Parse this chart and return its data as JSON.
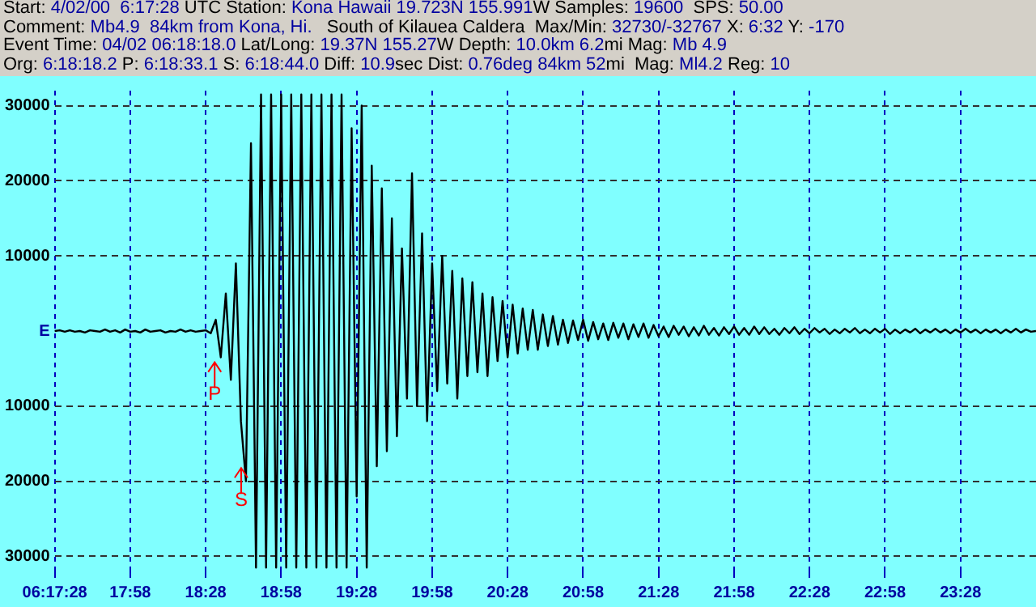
{
  "chart_data": {
    "type": "line",
    "annotations": [
      "Start: 4/02/00  6:17:28 UTC Station: Kona Hawaii 19.723N 155.991W Samples: 19600  SPS: 50.00",
      "Comment: Mb4.9  84km from Kona, Hi.   South of Kilauea Caldera  Max/Min: 32730/-32767 X: 6:32 Y: -170",
      "Event Time: 04/02 06:18:18.0 Lat/Long: 19.37N 155.27W Depth: 10.0km 6.2mi Mag: Mb 4.9",
      "Org: 6:18:18.2 P: 6:18:33.1 S: 6:18:44.0 Diff: 10.9sec Dist: 0.76deg 84km 52mi  Mag: Ml4.2 Reg: 10",
      "P",
      "S"
    ],
    "categories": [
      "06:17:28",
      null,
      null,
      null,
      null,
      null,
      null,
      null,
      null,
      null,
      null,
      null,
      null,
      null,
      null,
      "17:58",
      null,
      null,
      null,
      null,
      null,
      null,
      null,
      null,
      null,
      null,
      null,
      null,
      null,
      null,
      "18:28",
      null,
      null,
      null,
      null,
      null,
      null,
      null,
      null,
      null,
      null,
      null,
      null,
      null,
      null,
      "18:58",
      null,
      null,
      null,
      null,
      null,
      null,
      null,
      null,
      null,
      null,
      null,
      null,
      null,
      null,
      "19:28",
      null,
      null,
      null,
      null,
      null,
      null,
      null,
      null,
      null,
      null,
      null,
      null,
      null,
      null,
      "19:58",
      null,
      null,
      null,
      null,
      null,
      null,
      null,
      null,
      null,
      null,
      null,
      null,
      null,
      null,
      "20:28",
      null,
      null,
      null,
      null,
      null,
      null,
      null,
      null,
      null,
      null,
      null,
      null,
      null,
      null,
      "20:58",
      null,
      null,
      null,
      null,
      null,
      null,
      null,
      null,
      null,
      null,
      null,
      null,
      null,
      null,
      "21:28",
      null,
      null,
      null,
      null,
      null,
      null,
      null,
      null,
      null,
      null,
      null,
      null,
      null,
      null,
      "21:58",
      null,
      null,
      null,
      null,
      null,
      null,
      null,
      null,
      null,
      null,
      null,
      null,
      null,
      null,
      "22:28",
      null,
      null,
      null,
      null,
      null,
      null,
      null,
      null,
      null,
      null,
      null,
      null,
      null,
      null,
      "22:58",
      null,
      null,
      null,
      null,
      null,
      null,
      null,
      null,
      null,
      null,
      null,
      null,
      null,
      null,
      "23:28",
      null,
      null,
      null,
      null,
      null,
      null,
      null,
      null,
      null,
      null,
      null,
      null,
      null,
      null,
      null
    ],
    "series": [
      {
        "color": "#000000",
        "values": [
          0,
          100,
          -100,
          100,
          -100,
          0,
          -200,
          100,
          0,
          -100,
          200,
          -100,
          100,
          -200,
          200,
          -100,
          0,
          -200,
          200,
          -100,
          0,
          100,
          -200,
          0,
          -100,
          200,
          -100,
          100,
          -100,
          0,
          100,
          -300,
          1500,
          -3500,
          5000,
          -6500,
          9000,
          -12000,
          -20000,
          25000,
          -31500,
          31500,
          -31500,
          31500,
          -31500,
          31500,
          -31500,
          31500,
          -31500,
          31500,
          -31500,
          31500,
          -31500,
          31500,
          -31500,
          31500,
          -31500,
          31500,
          -31500,
          27000,
          -22000,
          30000,
          -31500,
          22000,
          -18000,
          19000,
          -16000,
          15000,
          -14000,
          11000,
          -9000,
          21000,
          -10000,
          13000,
          -12000,
          9000,
          -8000,
          10000,
          -7000,
          8000,
          -9000,
          7000,
          -6000,
          6500,
          -5500,
          5000,
          -6000,
          4500,
          -4000,
          4000,
          -3500,
          3500,
          -3000,
          3000,
          -2500,
          2800,
          -2500,
          2200,
          -2000,
          2000,
          -1800,
          1500,
          -1600,
          1400,
          -1200,
          1500,
          -1300,
          1200,
          -1100,
          1000,
          -1200,
          1100,
          -900,
          1000,
          -1100,
          900,
          -800,
          1000,
          -900,
          800,
          -700,
          600,
          -800,
          700,
          -500,
          600,
          -700,
          500,
          -600,
          700,
          -500,
          400,
          -600,
          500,
          -400,
          600,
          -500,
          400,
          -500,
          600,
          -400,
          500,
          -400,
          300,
          -500,
          400,
          -300,
          500,
          -400,
          300,
          -300,
          400,
          -200,
          300,
          -400,
          200,
          -300,
          300,
          -200,
          400,
          -300,
          200,
          -300,
          300,
          -200,
          300,
          -400,
          200,
          -300,
          200,
          -200,
          300,
          -300,
          200,
          -200,
          300,
          -200,
          200,
          -300,
          200,
          -200,
          300,
          -200,
          200,
          -300,
          200,
          -200,
          200,
          -300,
          200,
          -200,
          300,
          -200,
          200,
          -100,
          0
        ]
      }
    ],
    "ylim": [
      -32000,
      32000
    ],
    "yticks": [
      {
        "value": 30000,
        "label": "30000"
      },
      {
        "value": 20000,
        "label": "20000"
      },
      {
        "value": 10000,
        "label": "10000"
      },
      {
        "value": 0,
        "label": "E"
      },
      {
        "value": -10000,
        "label": "10000"
      },
      {
        "value": -20000,
        "label": "20000"
      },
      {
        "value": -30000,
        "label": "30000"
      }
    ],
    "grid": true,
    "legend": false,
    "marker": "none",
    "line_style": "solid"
  }
}
